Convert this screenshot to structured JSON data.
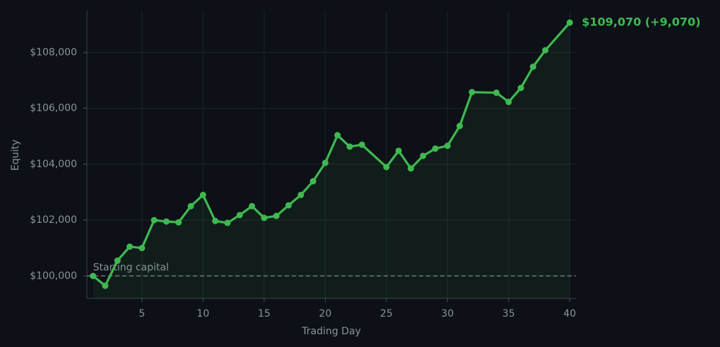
{
  "chart_data": {
    "type": "line",
    "xlabel": "Trading Day",
    "ylabel": "Equity",
    "x": [
      1,
      2,
      3,
      4,
      5,
      6,
      7,
      8,
      9,
      10,
      11,
      12,
      13,
      14,
      15,
      16,
      17,
      18,
      19,
      20,
      21,
      22,
      23,
      25,
      26,
      27,
      28,
      29,
      30,
      31,
      32,
      34,
      35,
      36,
      37,
      38,
      40
    ],
    "series": [
      {
        "name": "Equity",
        "color": "#3fb950",
        "values": [
          100000,
          99650,
          100550,
          101050,
          101000,
          102000,
          101950,
          101920,
          102500,
          102900,
          101970,
          101900,
          102180,
          102500,
          102080,
          102150,
          102530,
          102900,
          103390,
          104050,
          105040,
          104630,
          104700,
          103900,
          104480,
          103850,
          104300,
          104560,
          104660,
          105370,
          106580,
          106560,
          106230,
          106730,
          107490,
          108080,
          109070
        ]
      }
    ],
    "xlim": [
      0.5,
      40.5
    ],
    "xticks": [
      5,
      10,
      15,
      20,
      25,
      30,
      35,
      40
    ],
    "ylim": [
      99200,
      109500
    ],
    "yticks": [
      {
        "value": 100000,
        "label": "$100,000"
      },
      {
        "value": 102000,
        "label": "$102,000"
      },
      {
        "value": 104000,
        "label": "$104,000"
      },
      {
        "value": 106000,
        "label": "$106,000"
      },
      {
        "value": 108000,
        "label": "$108,000"
      }
    ],
    "grid": true,
    "baseline": 100000,
    "baseline_label": "Starting capital",
    "annotation": "$109,070  (+9,070)"
  }
}
